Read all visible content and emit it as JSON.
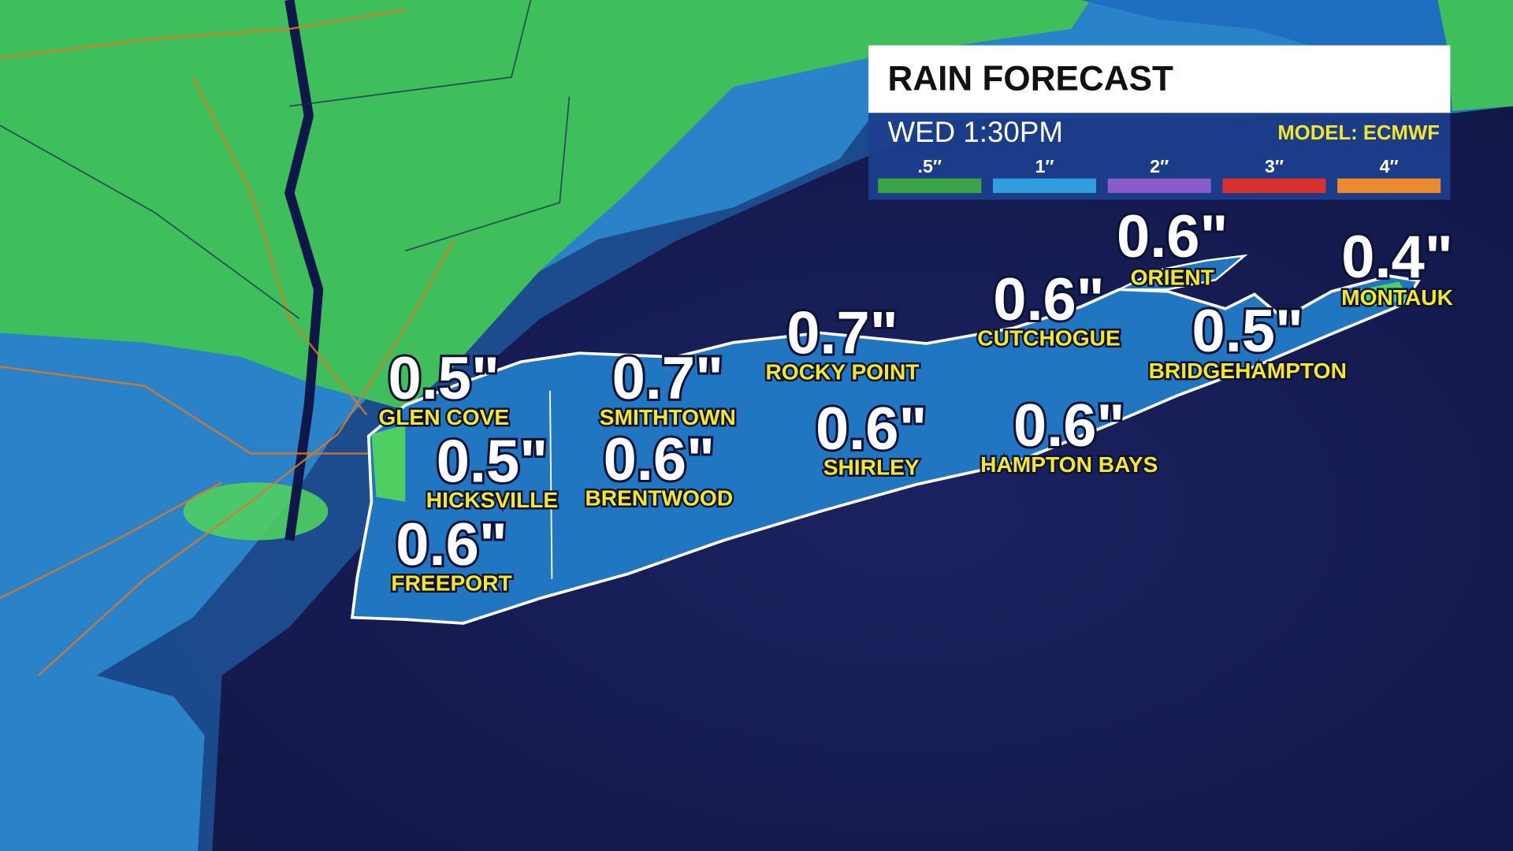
{
  "header": {
    "title": "RAIN FORECAST",
    "time": "WED 1:30PM",
    "model": "MODEL: ECMWF"
  },
  "legend": [
    {
      "label": ".5″",
      "color": "#3aa447"
    },
    {
      "label": "1″",
      "color": "#2f9fe0"
    },
    {
      "label": "2″",
      "color": "#8a5ccb"
    },
    {
      "label": "3″",
      "color": "#d9302d"
    },
    {
      "label": "4″",
      "color": "#ec8a2e"
    }
  ],
  "locations": [
    {
      "amount": "0.6\"",
      "name": "ORIENT"
    },
    {
      "amount": "0.4\"",
      "name": "MONTAUK"
    },
    {
      "amount": "0.6\"",
      "name": "CUTCHOGUE"
    },
    {
      "amount": "0.7\"",
      "name": "ROCKY POINT"
    },
    {
      "amount": "0.5\"",
      "name": "BRIDGEHAMPTON"
    },
    {
      "amount": "0.5\"",
      "name": "GLEN COVE"
    },
    {
      "amount": "0.7\"",
      "name": "SMITHTOWN"
    },
    {
      "amount": "0.6\"",
      "name": "SHIRLEY"
    },
    {
      "amount": "0.6\"",
      "name": "HAMPTON BAYS"
    },
    {
      "amount": "0.5\"",
      "name": "HICKSVILLE"
    },
    {
      "amount": "0.6\"",
      "name": "BRENTWOOD"
    },
    {
      "amount": "0.6\"",
      "name": "FREEPORT"
    }
  ]
}
